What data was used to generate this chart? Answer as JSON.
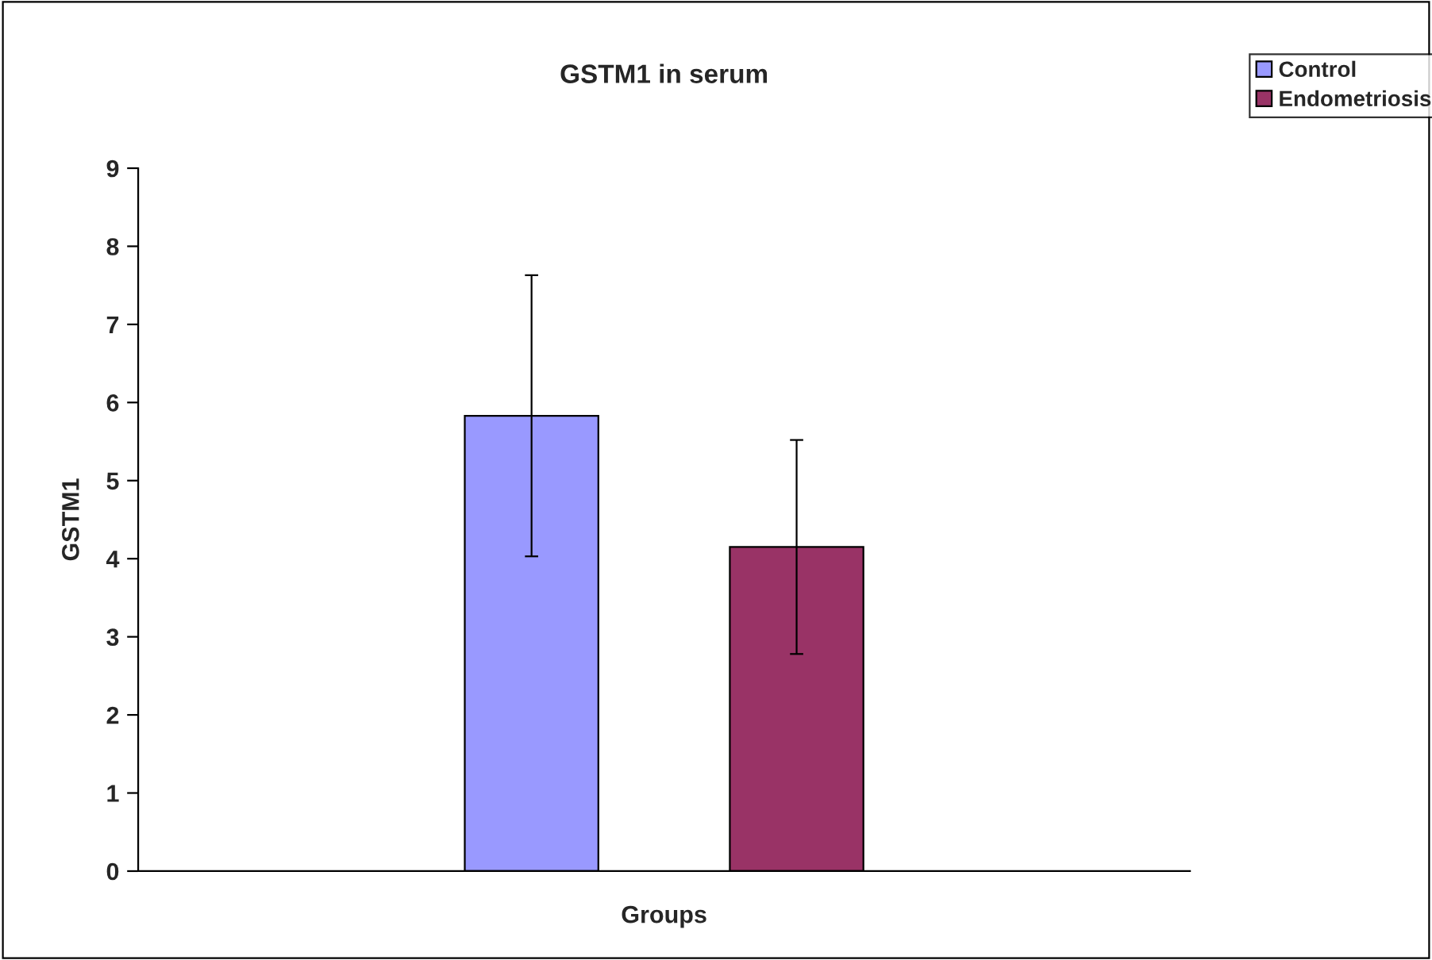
{
  "chart_data": {
    "type": "bar",
    "title": "GSTM1 in serum",
    "xlabel": "Groups",
    "ylabel": "GSTM1",
    "categories": [
      null
    ],
    "series": [
      {
        "name": "Control",
        "color": "#9999ff",
        "values": [
          5.83
        ],
        "errors": [
          1.8
        ]
      },
      {
        "name": "Endometriosis",
        "color": "#993366",
        "values": [
          4.15
        ],
        "errors": [
          1.37
        ]
      }
    ],
    "ylim": [
      0,
      9
    ],
    "yticks": [
      0,
      1,
      2,
      3,
      4,
      5,
      6,
      7,
      8,
      9
    ],
    "grid": false,
    "legend": "top right"
  }
}
